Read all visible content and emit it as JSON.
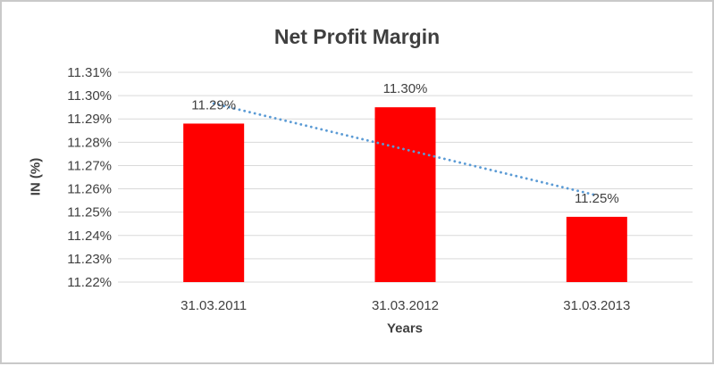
{
  "chart_data": {
    "type": "bar",
    "title": "Net Profit Margin",
    "xlabel": "Years",
    "ylabel": "IN (%)",
    "categories": [
      "31.03.2011",
      "31.03.2012",
      "31.03.2013"
    ],
    "values": [
      11.288,
      11.295,
      11.248
    ],
    "data_labels": [
      "11.29%",
      "11.30%",
      "11.25%"
    ],
    "ylim": [
      11.22,
      11.31
    ],
    "ytick_step": 0.01,
    "yticks": [
      "11.22%",
      "11.23%",
      "11.24%",
      "11.25%",
      "11.26%",
      "11.27%",
      "11.28%",
      "11.29%",
      "11.30%",
      "11.31%"
    ],
    "grid": "horizontal",
    "legend_position": "none",
    "bar_color": "#FF0000",
    "trendline": {
      "type": "linear",
      "style": "dotted",
      "color": "#5B9BD5",
      "start_value": 11.2966,
      "end_value": 11.2572
    }
  },
  "colors": {
    "text": "#404040",
    "title_text": "#3F3F3F",
    "gridline": "#D9D9D9",
    "background": "#FFFFFF",
    "frame_border": "#C9C9C9"
  }
}
